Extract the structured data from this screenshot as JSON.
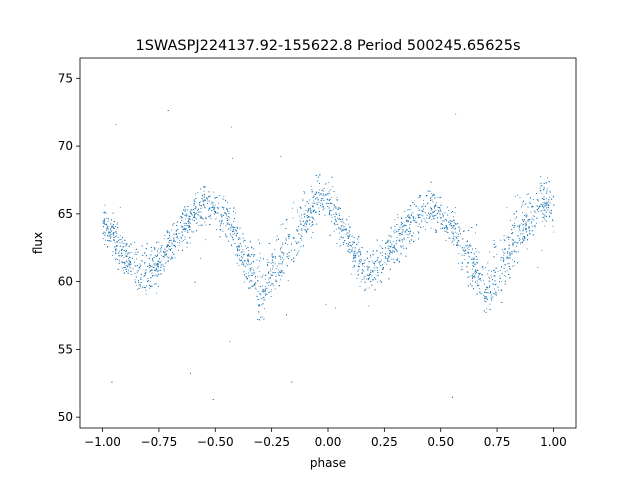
{
  "chart_data": {
    "type": "scatter",
    "title": "1SWASPJ224137.92-155622.8 Period 500245.65625s",
    "xlabel": "phase",
    "ylabel": "flux",
    "xlim": [
      -1.1,
      1.1
    ],
    "ylim": [
      49.2,
      76.5
    ],
    "xticks": [
      -1.0,
      -0.75,
      -0.5,
      -0.25,
      0.0,
      0.25,
      0.5,
      0.75,
      1.0
    ],
    "xtick_labels": [
      "−1.00",
      "−0.75",
      "−0.50",
      "−0.25",
      "0.00",
      "0.25",
      "0.50",
      "0.75",
      "1.00"
    ],
    "yticks": [
      50,
      55,
      60,
      65,
      70,
      75
    ],
    "ytick_labels": [
      "50",
      "55",
      "60",
      "65",
      "70",
      "75"
    ],
    "grid": false,
    "legend": "none",
    "point_color": "#1f77b4",
    "series": [
      {
        "values_approx_trend": {
          "x": [
            -1.0,
            -0.9,
            -0.83,
            -0.75,
            -0.65,
            -0.55,
            -0.45,
            -0.35,
            -0.3,
            -0.2,
            -0.1,
            -0.05,
            0.0,
            0.1,
            0.17,
            0.25,
            0.35,
            0.45,
            0.55,
            0.65,
            0.7,
            0.8,
            0.9,
            0.95,
            1.0
          ],
          "y": [
            64.5,
            61.8,
            60.6,
            61.5,
            64.0,
            65.8,
            64.5,
            61.0,
            58.8,
            61.5,
            64.5,
            66.2,
            66.0,
            62.8,
            60.6,
            61.8,
            64.2,
            65.8,
            64.2,
            60.8,
            58.8,
            61.8,
            64.8,
            66.0,
            65.5
          ]
        }
      }
    ]
  }
}
